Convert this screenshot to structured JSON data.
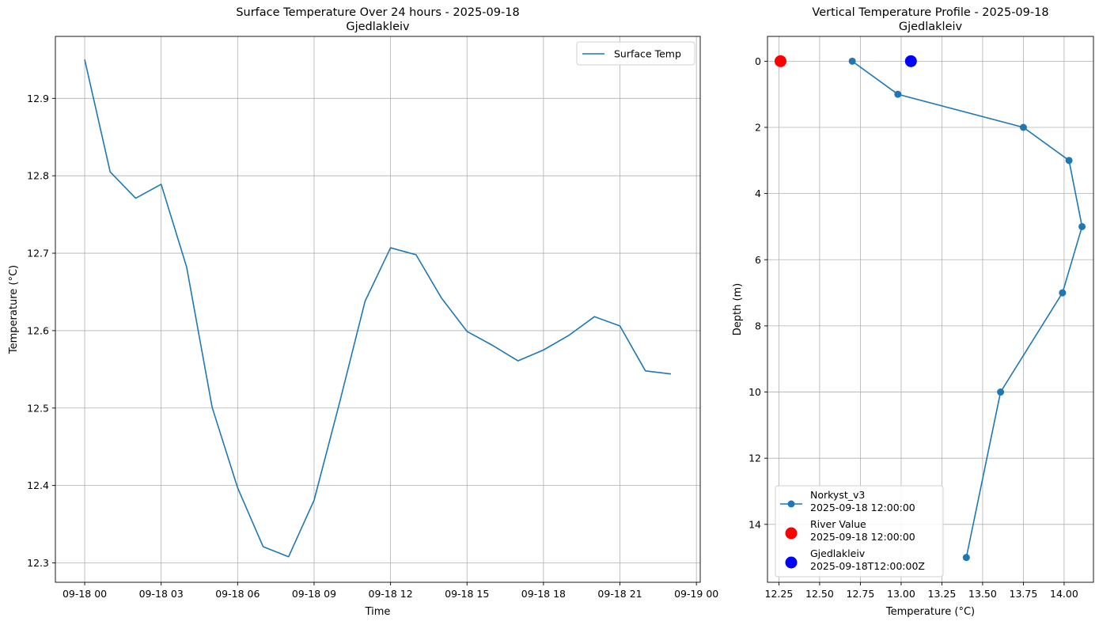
{
  "chart_data": [
    {
      "type": "line",
      "title": "Surface Temperature Over 24 hours - 2025-09-18",
      "subtitle": "Gjedlakleiv",
      "xlabel": "Time",
      "ylabel": "Temperature (°C)",
      "grid": true,
      "legend_placement": "top-right",
      "x_unit": "hours since 2025-09-18 00:00",
      "xlim": [
        -1.15,
        24.15
      ],
      "ylim": [
        12.275,
        12.98
      ],
      "x_ticks": [
        0,
        3,
        6,
        9,
        12,
        15,
        18,
        21,
        24
      ],
      "x_tick_labels": [
        "09-18 00",
        "09-18 03",
        "09-18 06",
        "09-18 09",
        "09-18 12",
        "09-18 15",
        "09-18 18",
        "09-18 21",
        "09-19 00"
      ],
      "y_ticks": [
        12.3,
        12.4,
        12.5,
        12.6,
        12.7,
        12.8,
        12.9
      ],
      "y_tick_labels": [
        "12.3",
        "12.4",
        "12.5",
        "12.6",
        "12.7",
        "12.8",
        "12.9"
      ],
      "series": [
        {
          "name": "Surface Temp",
          "color": "#1f77b4",
          "x": [
            0,
            1,
            2,
            3,
            4,
            5,
            6,
            7,
            8,
            9,
            10,
            11,
            12,
            13,
            14,
            15,
            16,
            17,
            18,
            19,
            20,
            21,
            22,
            23
          ],
          "y": [
            12.95,
            12.805,
            12.771,
            12.789,
            12.682,
            12.501,
            12.397,
            12.321,
            12.308,
            12.381,
            12.507,
            12.638,
            12.707,
            12.698,
            12.642,
            12.599,
            12.581,
            12.561,
            12.575,
            12.594,
            12.618,
            12.606,
            12.548,
            12.544
          ]
        }
      ]
    },
    {
      "type": "scatter",
      "title": "Vertical Temperature Profile - 2025-09-18",
      "subtitle": "Gjedlakleiv",
      "xlabel": "Temperature (°C)",
      "ylabel": "Depth (m)",
      "grid": true,
      "y_inverted": true,
      "legend_placement": "bottom-left",
      "xlim": [
        12.18,
        14.18
      ],
      "ylim": [
        -0.75,
        15.75
      ],
      "x_ticks": [
        12.25,
        12.5,
        12.75,
        13.0,
        13.25,
        13.5,
        13.75,
        14.0
      ],
      "x_tick_labels": [
        "12.25",
        "12.50",
        "12.75",
        "13.00",
        "13.25",
        "13.50",
        "13.75",
        "14.00"
      ],
      "y_ticks": [
        0,
        2,
        4,
        6,
        8,
        10,
        12,
        14
      ],
      "y_tick_labels": [
        "0",
        "2",
        "4",
        "6",
        "8",
        "10",
        "12",
        "14"
      ],
      "series": [
        {
          "name": "Norkyst_v3",
          "name_line2": "2025-09-18 12:00:00",
          "kind": "line-markers",
          "color": "#1f77b4",
          "x": [
            12.7,
            12.98,
            13.75,
            14.03,
            14.11,
            13.99,
            13.61,
            13.4
          ],
          "y": [
            0,
            1,
            2,
            3,
            5,
            7,
            10,
            15
          ]
        },
        {
          "name": "River Value",
          "name_line2": "2025-09-18 12:00:00",
          "kind": "point",
          "color": "#ff0000",
          "x": [
            12.26
          ],
          "y": [
            0
          ]
        },
        {
          "name": "Gjedlakleiv",
          "name_line2": "2025-09-18T12:00:00Z",
          "kind": "point",
          "color": "#0000ff",
          "x": [
            13.06
          ],
          "y": [
            0
          ]
        }
      ]
    }
  ]
}
